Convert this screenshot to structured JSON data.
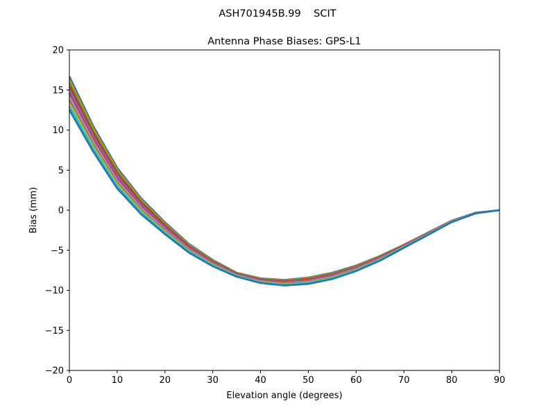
{
  "chart_data": {
    "type": "line",
    "suptitle": "ASH701945B.99    SCIT",
    "title": "Antenna Phase Biases: GPS-L1",
    "xlabel": "Elevation angle (degrees)",
    "ylabel": "Bias (mm)",
    "xlim": [
      0,
      90
    ],
    "ylim": [
      -20,
      20
    ],
    "xticks": [
      0,
      10,
      20,
      30,
      40,
      50,
      60,
      70,
      80,
      90
    ],
    "yticks": [
      -20,
      -15,
      -10,
      -5,
      0,
      5,
      10,
      15,
      20
    ],
    "grid": false,
    "x": [
      0,
      5,
      10,
      15,
      20,
      25,
      30,
      35,
      40,
      45,
      50,
      55,
      60,
      65,
      70,
      75,
      80,
      85,
      90
    ],
    "colors": [
      "#1f77b4",
      "#ff7f0e",
      "#2ca02c",
      "#d62728",
      "#9467bd",
      "#8c564b",
      "#e377c2",
      "#7f7f7f",
      "#bcbd22",
      "#17becf"
    ],
    "series": [
      {
        "values": [
          16.7,
          10.5,
          5.3,
          1.5,
          -1.5,
          -4.2,
          -6.2,
          -7.8,
          -8.5,
          -8.7,
          -8.4,
          -7.8,
          -6.9,
          -5.7,
          -4.3,
          -2.8,
          -1.3,
          -0.3,
          0
        ]
      },
      {
        "values": [
          16.28,
          10.18,
          5.04,
          1.3,
          -1.65,
          -4.31,
          -6.28,
          -7.85,
          -8.56,
          -8.77,
          -8.48,
          -7.88,
          -6.97,
          -5.76,
          -4.34,
          -2.83,
          -1.32,
          -0.31,
          0
        ]
      },
      {
        "values": [
          15.86,
          9.86,
          4.78,
          1.1,
          -1.8,
          -4.42,
          -6.36,
          -7.9,
          -8.62,
          -8.84,
          -8.56,
          -7.96,
          -7.04,
          -5.82,
          -4.38,
          -2.86,
          -1.34,
          -0.32,
          0
        ]
      },
      {
        "values": [
          15.44,
          9.54,
          4.52,
          0.9,
          -1.95,
          -4.53,
          -6.44,
          -7.95,
          -8.68,
          -8.91,
          -8.64,
          -8.04,
          -7.11,
          -5.88,
          -4.42,
          -2.89,
          -1.36,
          -0.33,
          0
        ]
      },
      {
        "values": [
          15.02,
          9.22,
          4.26,
          0.7,
          -2.1,
          -4.64,
          -6.52,
          -8.0,
          -8.74,
          -8.98,
          -8.72,
          -8.12,
          -7.18,
          -5.94,
          -4.46,
          -2.92,
          -1.38,
          -0.34,
          0
        ]
      },
      {
        "values": [
          14.6,
          8.9,
          4.0,
          0.5,
          -2.25,
          -4.75,
          -6.6,
          -8.05,
          -8.8,
          -9.05,
          -8.8,
          -8.2,
          -7.25,
          -6.0,
          -4.5,
          -2.95,
          -1.4,
          -0.35,
          0
        ]
      },
      {
        "values": [
          14.18,
          8.58,
          3.74,
          0.3,
          -2.4,
          -4.86,
          -6.68,
          -8.1,
          -8.86,
          -9.12,
          -8.88,
          -8.28,
          -7.32,
          -6.06,
          -4.54,
          -2.98,
          -1.42,
          -0.36,
          0
        ]
      },
      {
        "values": [
          13.76,
          8.26,
          3.48,
          0.1,
          -2.55,
          -4.97,
          -6.76,
          -8.15,
          -8.92,
          -9.19,
          -8.96,
          -8.36,
          -7.39,
          -6.12,
          -4.58,
          -3.01,
          -1.44,
          -0.37,
          0
        ]
      },
      {
        "values": [
          13.34,
          7.94,
          3.22,
          -0.1,
          -2.7,
          -5.08,
          -6.84,
          -8.2,
          -8.98,
          -9.26,
          -9.04,
          -8.44,
          -7.46,
          -6.18,
          -4.62,
          -3.04,
          -1.46,
          -0.38,
          0
        ]
      },
      {
        "values": [
          12.92,
          7.62,
          2.96,
          -0.3,
          -2.85,
          -5.19,
          -6.92,
          -8.25,
          -9.04,
          -9.33,
          -9.12,
          -8.52,
          -7.53,
          -6.24,
          -4.66,
          -3.07,
          -1.48,
          -0.39,
          0
        ]
      },
      {
        "values": [
          12.5,
          7.3,
          2.7,
          -0.5,
          -3.0,
          -5.3,
          -7.0,
          -8.3,
          -9.1,
          -9.4,
          -9.2,
          -8.6,
          -7.6,
          -6.3,
          -4.7,
          -3.1,
          -1.5,
          -0.4,
          0
        ]
      }
    ]
  }
}
